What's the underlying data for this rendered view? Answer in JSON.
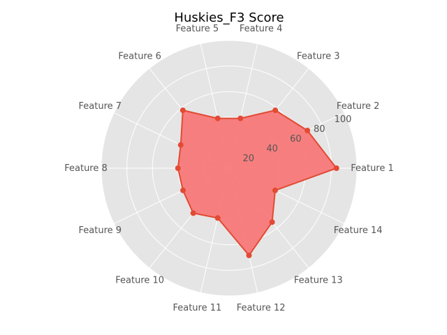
{
  "chart_data": {
    "type": "radar",
    "title": "Huskies_F3 Score",
    "categories": [
      "Feature 1",
      "Feature 2",
      "Feature 3",
      "Feature 4",
      "Feature 5",
      "Feature 6",
      "Feature 7",
      "Feature 8",
      "Feature 9",
      "Feature 10",
      "Feature 11",
      "Feature 12",
      "Feature 13",
      "Feature 14"
    ],
    "series": [
      {
        "values": [
          84,
          68,
          58,
          40,
          40,
          58,
          42,
          40,
          40,
          45,
          40,
          70,
          54,
          40
        ]
      }
    ],
    "rlim": [
      0,
      100
    ],
    "rticks": [
      20,
      40,
      60,
      80,
      100
    ],
    "rtick_labels": [
      "20",
      "40",
      "60",
      "80",
      "100"
    ],
    "grid": true,
    "colors": {
      "panel": "#e5e5e5",
      "grid": "#ffffff",
      "series": "#e24a33",
      "fill": "#f87272"
    }
  }
}
